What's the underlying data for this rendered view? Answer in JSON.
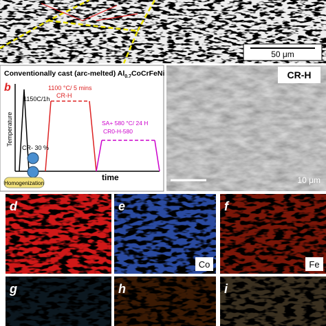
{
  "top_panel": {
    "scale_bar": "50 μm"
  },
  "panel_b": {
    "title": {
      "main": "Conventionally cast (arc-melted) Al",
      "subscript": "0.7",
      "rest": "CoCrFeNi"
    },
    "label": "b",
    "homogenize_step": "1150C/1h",
    "solution_step": "1100 °C/ 5 mins",
    "solution_name": "CR-H",
    "aging_step": "SA+ 580 °C/ 24 H",
    "aging_name": "CR0-H-580",
    "y_axis": "Temperature",
    "rolling": "CR- 30 %",
    "homogenization_box": "Homogenization",
    "x_axis": "time"
  },
  "panel_c": {
    "label": "CR-H",
    "scale_bar": "10 μm"
  },
  "panels_map": [
    {
      "label": "d",
      "element": null
    },
    {
      "label": "e",
      "element": "Co"
    },
    {
      "label": "f",
      "element": "Fe"
    },
    {
      "label": "g",
      "element": null
    },
    {
      "label": "h",
      "element": null
    },
    {
      "label": "i",
      "element": null
    }
  ]
}
